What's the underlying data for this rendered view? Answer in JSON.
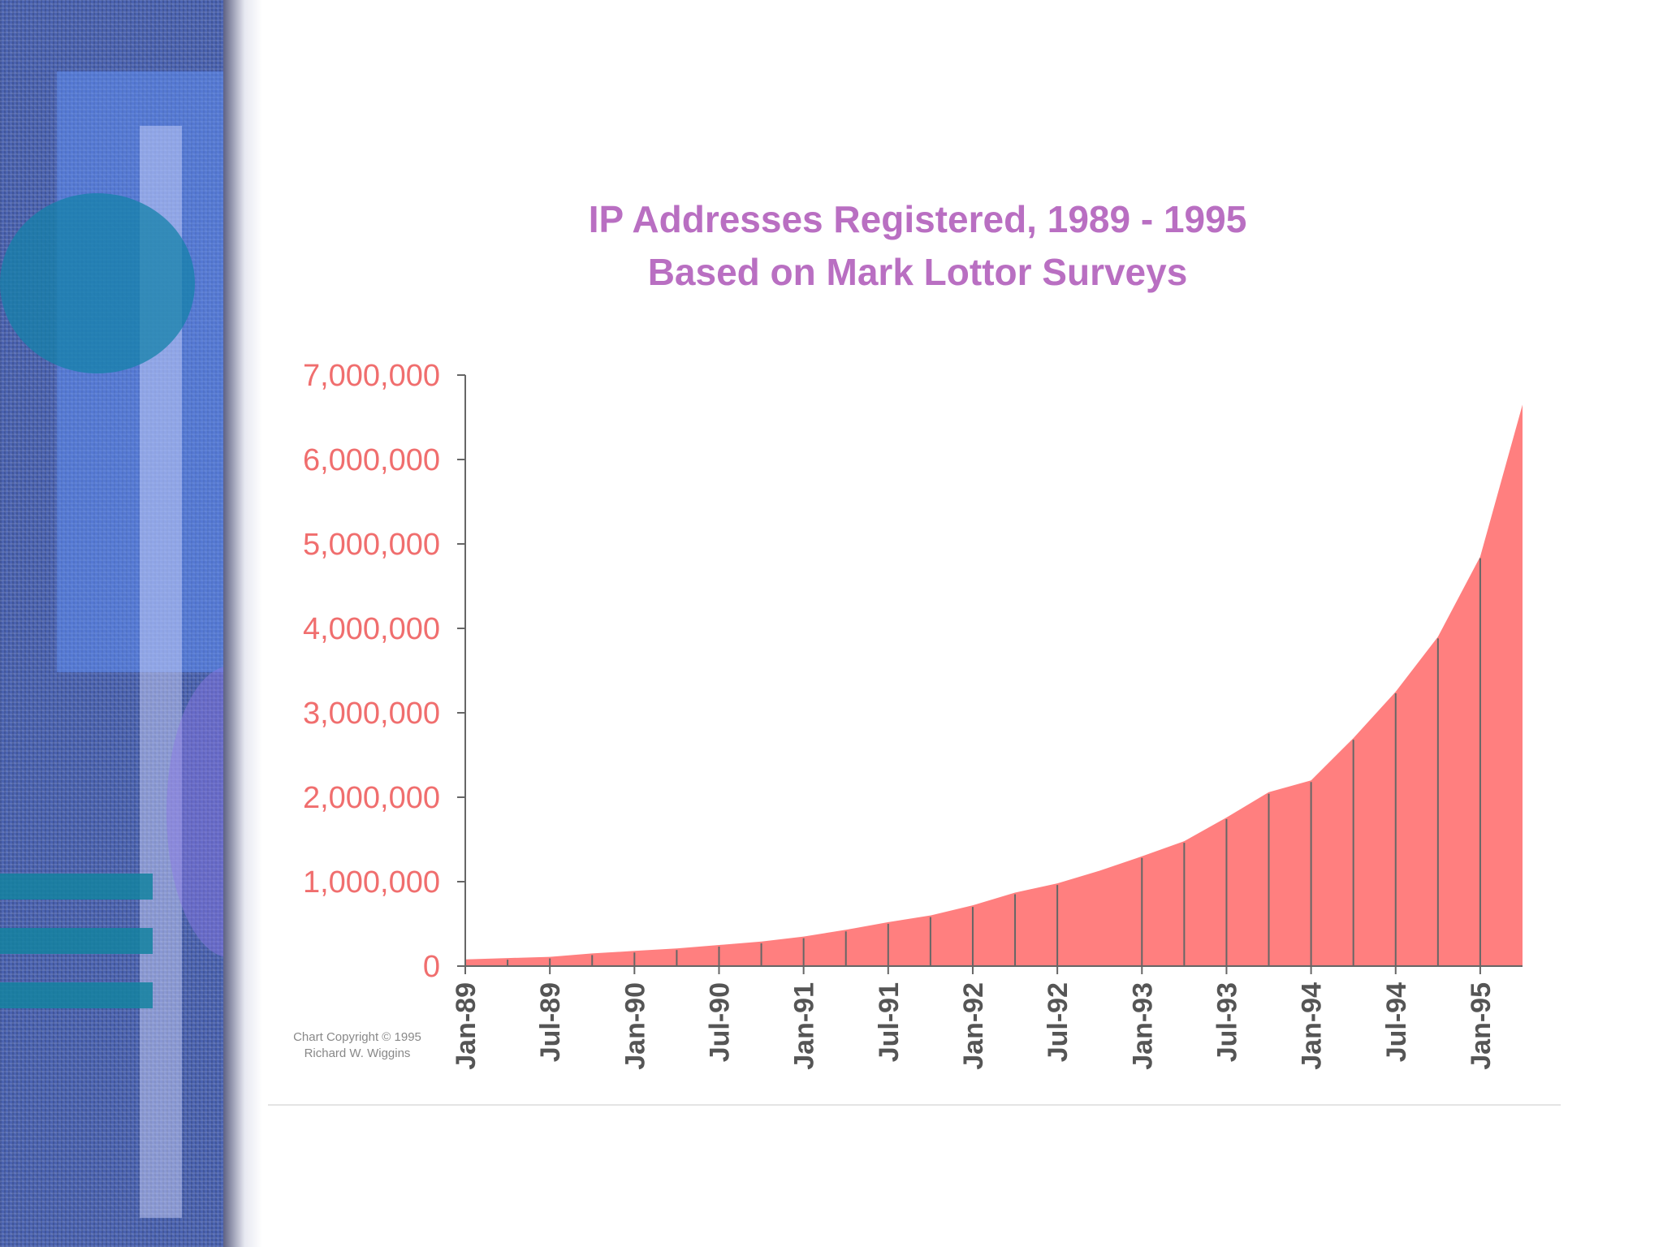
{
  "chart_data": {
    "type": "area",
    "title": [
      "IP Addresses Registered, 1989 - 1995",
      "Based on Mark Lottor Surveys"
    ],
    "ylim": [
      0,
      7000000
    ],
    "yticks": [
      {
        "value": 0,
        "label": "0"
      },
      {
        "value": 1000000,
        "label": "1,000,000"
      },
      {
        "value": 2000000,
        "label": "2,000,000"
      },
      {
        "value": 3000000,
        "label": "3,000,000"
      },
      {
        "value": 4000000,
        "label": "4,000,000"
      },
      {
        "value": 5000000,
        "label": "5,000,000"
      },
      {
        "value": 6000000,
        "label": "6,000,000"
      },
      {
        "value": 7000000,
        "label": "7,000,000"
      }
    ],
    "xlim": [
      0,
      75
    ],
    "xticks": [
      {
        "month": 0,
        "label": "Jan-89"
      },
      {
        "month": 6,
        "label": "Jul-89"
      },
      {
        "month": 12,
        "label": "Jan-90"
      },
      {
        "month": 18,
        "label": "Jul-90"
      },
      {
        "month": 24,
        "label": "Jan-91"
      },
      {
        "month": 30,
        "label": "Jul-91"
      },
      {
        "month": 36,
        "label": "Jan-92"
      },
      {
        "month": 42,
        "label": "Jul-92"
      },
      {
        "month": 48,
        "label": "Jan-93"
      },
      {
        "month": 54,
        "label": "Jul-93"
      },
      {
        "month": 60,
        "label": "Jan-94"
      },
      {
        "month": 66,
        "label": "Jul-94"
      },
      {
        "month": 72,
        "label": "Jan-95"
      }
    ],
    "series": [
      {
        "name": "IP Addresses Registered",
        "color": "#ff7f7f",
        "x": [
          0,
          3,
          6,
          9,
          12,
          15,
          18,
          21,
          24,
          27,
          30,
          33,
          36,
          39,
          42,
          45,
          48,
          51,
          54,
          57,
          60,
          63,
          66,
          69,
          72,
          75
        ],
        "values": [
          80000,
          95000,
          110000,
          150000,
          180000,
          210000,
          250000,
          290000,
          350000,
          430000,
          520000,
          600000,
          720000,
          870000,
          980000,
          1130000,
          1300000,
          1480000,
          1760000,
          2060000,
          2200000,
          2700000,
          3250000,
          3900000,
          4850000,
          6650000
        ]
      }
    ],
    "drop_lines": [
      3,
      6,
      9,
      12,
      15,
      18,
      21,
      24,
      27,
      30,
      33,
      36,
      39,
      42,
      48,
      51,
      54,
      57,
      60,
      63,
      66,
      69,
      72
    ]
  },
  "copyright": [
    "Chart Copyright © 1995",
    "Richard W. Wiggins"
  ],
  "colors": {
    "title": "#b96fc2",
    "ytick": "#f06e6e",
    "area": "#ff7f7f",
    "axis": "#666666"
  }
}
